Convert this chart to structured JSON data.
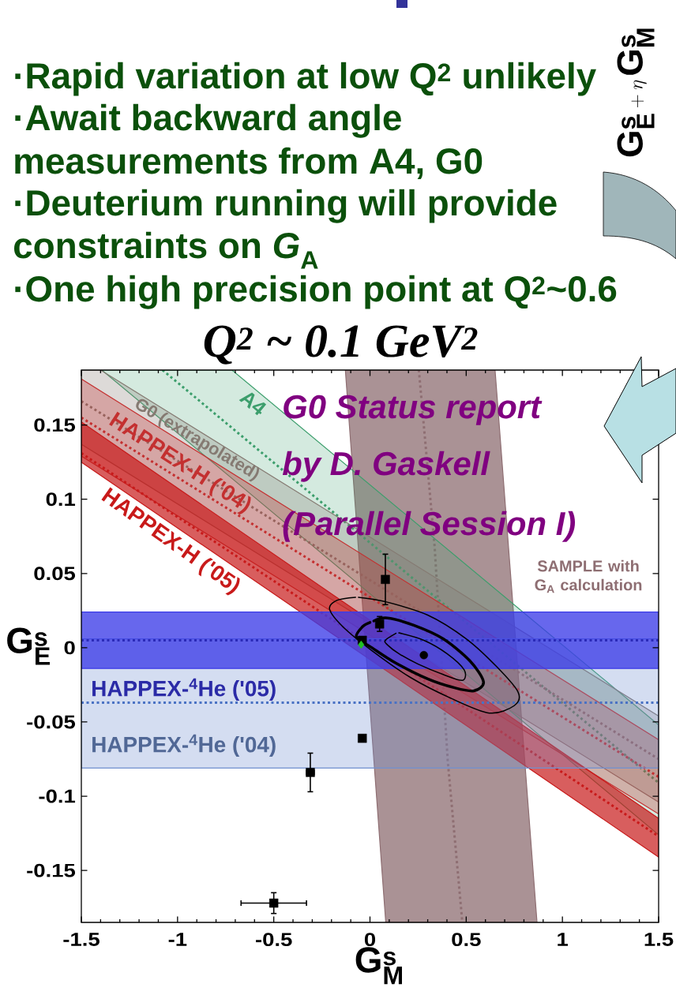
{
  "chart_data": {
    "type": "scatter",
    "title": "Q$^{2}$ ~ 0.1 GeV$^{2}$",
    "xlabel": "\\mathbf{G}_{\\mathbf{M}}^{\\mathbf{s}}",
    "ylabel": "\\mathbf{G}_{\\mathbf{E}}^{\\mathbf{s}}",
    "annotations": [
      "·Rapid variation at low Q$^{2}$ unlikely",
      "·Await backward angle",
      "measurements from A4, G0",
      "·Deuterium running will provide",
      "constraints on *G*$_{A}$",
      "·One high precision point at Q$^{2}$~0.6",
      "G0 Status report",
      "by D. Gaskell",
      "(Parallel Session I)",
      "\\mathbf{G}_{\\mathbf{E}}^{\\mathbf{s}}+\\eta\\,\\mathbf{G}_{\\mathbf{M}}^{\\mathbf{s}}"
    ],
    "xlim": [
      -1.5,
      1.5
    ],
    "ylim": [
      -0.185,
      0.187
    ],
    "xticks": [
      -1.5,
      -1,
      -0.5,
      0,
      0.5,
      1,
      1.5
    ],
    "yticks": [
      -0.15,
      -0.1,
      -0.05,
      0,
      0.05,
      0.1,
      0.15
    ],
    "series": [
      {
        "type": "line",
        "name": "SAMPLE with G$_{A}$ calculation",
        "color": "#8e6e72",
        "line_style": "dotted",
        "x": [
          -0.128,
          0.082,
          0.254,
          0.336,
          0.404,
          0.48,
          0.65,
          0.868
        ],
        "values": [
          null,
          null,
          0.187,
          0.068,
          -0.076,
          -0.185,
          null,
          null
        ],
        "lower": [
          0.187,
          -0.185,
          -0.185,
          -0.185,
          -0.185,
          -0.185,
          -0.185,
          -0.185
        ],
        "upper": [
          0.187,
          0.187,
          0.187,
          0.187,
          0.187,
          0.187,
          0.187,
          -0.185
        ]
      },
      {
        "type": "line",
        "name": "A4",
        "color": "#3c9e6c",
        "line_style": "dotted",
        "x": [
          -1.394,
          -1.078,
          -0.717,
          1.5
        ],
        "values": [
          null,
          0.187,
          0.148,
          -0.091
        ],
        "lower": [
          0.187,
          0.153,
          0.114,
          -0.126
        ],
        "upper": [
          0.187,
          0.187,
          0.187,
          -0.052
        ]
      },
      {
        "type": "line",
        "name": "G0 (extrapolated)",
        "color": "#857a72",
        "line_style": "dotted",
        "x": [
          -1.5,
          -1.4,
          1.5
        ],
        "values": [
          0.166,
          0.158,
          -0.075
        ],
        "lower": [
          0.137,
          0.129,
          -0.104
        ],
        "upper": [
          0.187,
          0.187,
          -0.046
        ]
      },
      {
        "type": "line",
        "name": "HAPPEX-H ('04)",
        "color": "#c43030",
        "line_style": "dotted",
        "x": [
          -1.5,
          1.5
        ],
        "values": [
          0.155,
          -0.087
        ],
        "lower": [
          0.129,
          -0.112
        ],
        "upper": [
          0.181,
          -0.062
        ]
      },
      {
        "type": "line",
        "name": "HAPPEX-H ('05)",
        "color": "#c81a1a",
        "line_style": "dotted",
        "x": [
          -1.5,
          1.5
        ],
        "values": [
          0.131,
          -0.127
        ],
        "lower": [
          0.125,
          -0.141
        ],
        "upper": [
          0.152,
          -0.115
        ]
      },
      {
        "type": "line",
        "color": "#000000",
        "line_style": "solid",
        "x": [
          -0.06,
          0.08,
          0.3,
          0.5,
          0.66,
          0.77,
          0.75,
          0.62,
          0.42,
          0.21,
          0.01,
          -0.14,
          -0.21,
          -0.17,
          -0.075
        ],
        "values": [
          0.034,
          0.031,
          0.022,
          0.006,
          -0.013,
          -0.03,
          -0.039,
          -0.044,
          -0.034,
          -0.02,
          -0.002,
          0.014,
          0.026,
          0.032,
          0.034
        ]
      },
      {
        "type": "line",
        "color": "#000000",
        "line_style": "solid",
        "x": [
          0.02,
          0.09,
          0.23,
          0.38,
          0.52,
          0.59,
          0.54,
          0.44,
          0.3,
          0.13,
          0.01,
          -0.07,
          -0.04,
          0.0
        ],
        "values": [
          0.018,
          0.02,
          0.015,
          0.006,
          -0.009,
          -0.023,
          -0.029,
          -0.027,
          -0.021,
          -0.01,
          0.0,
          0.007,
          0.014,
          0.017
        ]
      },
      {
        "type": "line",
        "color": "#000000",
        "line_style": "solid",
        "x": [
          0.15,
          0.28,
          0.4,
          0.49,
          0.48,
          0.38,
          0.25,
          0.15,
          0.09,
          0.08,
          0.135
        ],
        "values": [
          0.01,
          0.005,
          -0.004,
          -0.015,
          -0.022,
          -0.018,
          -0.011,
          -0.004,
          0.002,
          0.005,
          0.0097
        ]
      },
      {
        "color": "#000000",
        "marker": "square",
        "x": [
          0.08,
          0.05,
          -0.04,
          -0.04,
          -0.31,
          -0.5
        ],
        "values": [
          0.046,
          0.016,
          0.005,
          -0.061,
          -0.084,
          -0.172
        ],
        "errors": [
          0.017,
          0.005,
          null,
          null,
          0.013,
          0.007
        ],
        "xerrors": [
          null,
          null,
          null,
          null,
          0.02,
          0.17
        ]
      },
      {
        "color": "#000000",
        "marker": "circle",
        "x": [
          0.28
        ],
        "values": [
          -0.005
        ]
      },
      {
        "color": "#22c022",
        "marker": "diamond",
        "x": [
          -0.046
        ],
        "values": [
          0.002
        ]
      }
    ],
    "bands": [
      {
        "axis": "y",
        "from": -0.081,
        "to": 0.006,
        "label": "HAPPEX-$^{4}$He ('04)",
        "color": "#7090d0"
      },
      {
        "axis": "y",
        "from": -0.014,
        "to": 0.024,
        "label": "HAPPEX-$^{4}$He ('05)",
        "color": "#3c3ce8"
      }
    ],
    "ref_lines": [
      {
        "axis": "y",
        "value": 0.005,
        "color": "#2a2ab8",
        "line_style": "dotted"
      },
      {
        "axis": "y",
        "value": -0.037,
        "color": "#4a72c4",
        "line_style": "dotted"
      }
    ]
  }
}
